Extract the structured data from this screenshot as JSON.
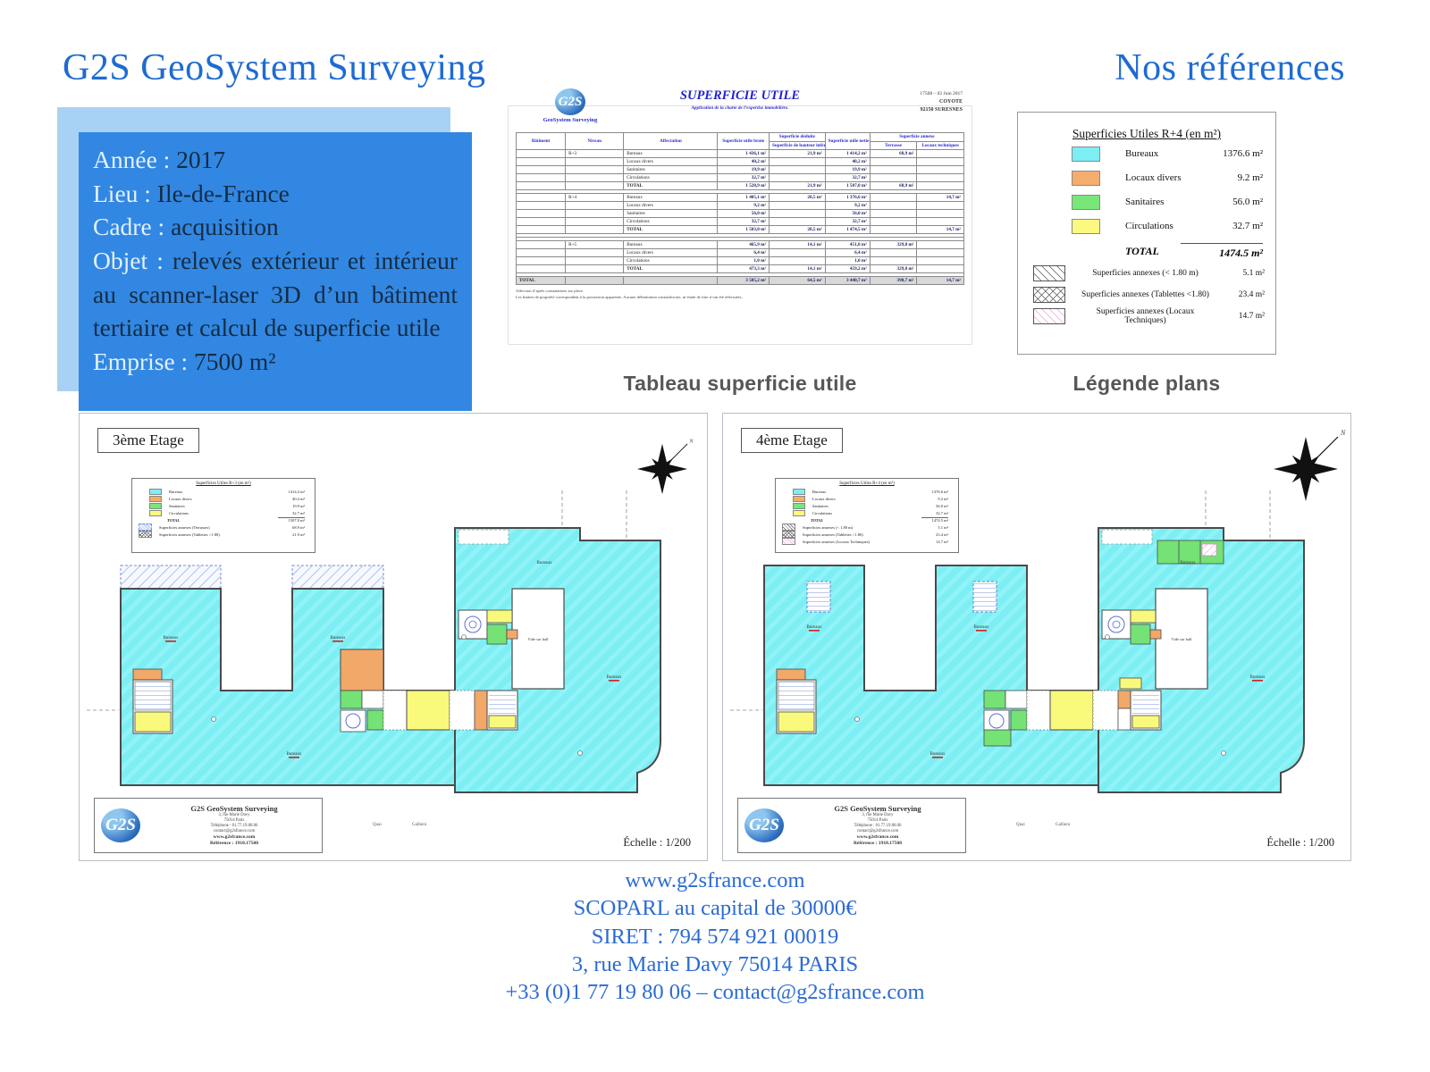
{
  "brand": {
    "logo": "G2S"
  },
  "colors": {
    "accent_blue": "#3287e2",
    "title_blue": "#1d6bd3",
    "footer_blue": "#2b6bd4",
    "bureaux_cyan": "#7deef3",
    "locaux_orange": "#f5ad6e",
    "sanitaires_green": "#79e679",
    "circulations_yellow": "#fbf97f"
  },
  "header": {
    "title_left": "G2S GeoSystem Surveying",
    "title_right": "Nos références"
  },
  "info_box": {
    "lines": [
      {
        "label": "Année :",
        "value": "2017"
      },
      {
        "label": "Lieu :",
        "value": "Ile-de-France"
      },
      {
        "label": "Cadre :",
        "value": "acquisition"
      },
      {
        "label": "Objet :",
        "value": "relevés extérieur et intérieur au scanner-laser 3D d’un bâtiment tertiaire et calcul de superficie utile"
      },
      {
        "label": "Emprise :",
        "value": "7500 m²"
      }
    ]
  },
  "document": {
    "logo": {
      "text": "G2S",
      "sub": "GeoSystem Surveying"
    },
    "header": {
      "ref_date": "17508 – 02 Juin 2017",
      "client": "COYOTE",
      "city": "92150 SURESNES"
    },
    "title": "SUPERFICIE UTILE",
    "subtitle": "Application de la charte de l’expertise immobilière.",
    "table": {
      "col_headers": {
        "batiment": "Bâtiment",
        "niveau": "Niveau",
        "affectation": "Affectation",
        "brute": "Superficie utile brute",
        "deduite_group": "Superficie déduite",
        "deduite": "Superficie de hauteur inférieure à 1,80 m",
        "nette": "Superficie utile nette",
        "annexe_group": "Superficie annexe",
        "terrasse": "Terrasse",
        "locaux": "Locaux techniques"
      },
      "rows": [
        {
          "niveau": "R+3",
          "affectation": "Bureaux",
          "brute": "1 436,1 m²",
          "deduite": "21,9 m²",
          "nette": "1 414,2 m²",
          "terrasse": "68,9 m²"
        },
        {
          "affectation": "Locaux divers",
          "brute": "40,2 m²",
          "nette": "40,2 m²"
        },
        {
          "affectation": "Sanitaires",
          "brute": "19,9 m²",
          "nette": "19,9 m²"
        },
        {
          "affectation": "Circulations",
          "brute": "32,7 m²",
          "nette": "32,7 m²"
        },
        {
          "type": "total",
          "affectation": "TOTAL",
          "brute": "1 528,9 m²",
          "deduite": "21,9 m²",
          "nette": "1 507,0 m²",
          "terrasse": "68,9 m²"
        },
        {
          "type": "spacer"
        },
        {
          "niveau": "R+4",
          "affectation": "Bureaux",
          "brute": "1 405,1 m²",
          "deduite": "28,5 m²",
          "nette": "1 376,6 m²",
          "locaux": "14,7 m²"
        },
        {
          "affectation": "Locaux divers",
          "brute": "9,2 m²",
          "nette": "9,2 m²"
        },
        {
          "affectation": "Sanitaires",
          "brute": "56,0 m²",
          "nette": "56,0 m²"
        },
        {
          "affectation": "Circulations",
          "brute": "32,7 m²",
          "nette": "32,7 m²"
        },
        {
          "type": "total",
          "affectation": "TOTAL",
          "brute": "1 503,0 m²",
          "deduite": "28,5 m²",
          "nette": "1 474,5 m²",
          "locaux": "14,7 m²"
        },
        {
          "type": "spacer"
        },
        {
          "type": "spacer"
        },
        {
          "niveau": "R+5",
          "affectation": "Bureaux",
          "brute": "465,9 m²",
          "deduite": "14,1 m²",
          "nette": "451,8 m²",
          "terrasse": "329,8 m²"
        },
        {
          "affectation": "Locaux divers",
          "brute": "6,4 m²",
          "nette": "6,4 m²"
        },
        {
          "affectation": "Circulations",
          "brute": "1,0 m²",
          "nette": "1,0 m²"
        },
        {
          "type": "total",
          "affectation": "TOTAL",
          "brute": "473,3 m²",
          "deduite": "14,1 m²",
          "nette": "459,2 m²",
          "terrasse": "329,8 m²"
        },
        {
          "type": "spacer"
        },
        {
          "type": "grand",
          "batiment": "TOTAL",
          "brute": "3 505,2 m²",
          "deduite": "64,5 m²",
          "nette": "3 440,7 m²",
          "terrasse": "398,7 m²",
          "locaux": "14,7 m²"
        }
      ]
    },
    "notes": [
      "Affection d’après constatations sur place.",
      "Les limites de propriété correspondent à la possession apparente. Aucune délimitation contradictoire, ni étude de titre n’ont été effectuées."
    ]
  },
  "captions": {
    "table": "Tableau superficie utile",
    "legend": "Légende plans"
  },
  "legend": {
    "title": "Superficies Utiles R+4 (en m²)",
    "rows": [
      {
        "label": "Bureaux",
        "value": "1376.6 m²",
        "swatch": "cyan"
      },
      {
        "label": "Locaux divers",
        "value": "9.2 m²",
        "swatch": "orange"
      },
      {
        "label": "Sanitaires",
        "value": "56.0 m²",
        "swatch": "green"
      },
      {
        "label": "Circulations",
        "value": "32.7 m²",
        "swatch": "yellow"
      }
    ],
    "total": {
      "label": "TOTAL",
      "value": "1474.5 m²"
    },
    "annexes": [
      {
        "label": "Superficies annexes (< 1.80 m)",
        "value": "5.1 m²",
        "swatch": "diag"
      },
      {
        "label": "Superficies annexes (Tablettes <1.80)",
        "value": "23.4 m²",
        "swatch": "diamond"
      },
      {
        "label": "Superficies annexes (Locaux Techniques)",
        "value": "14.7 m²",
        "swatch": "pink"
      }
    ]
  },
  "plan_labels": {
    "bureaux": "Bureaux",
    "vide": "Vide sur hall"
  },
  "plan_info": {
    "name": "G2S GeoSystem Surveying",
    "addr1": "3, rue Marie Davy",
    "addr2": "75014 Paris",
    "phone": "Téléphone : 01.77.19.80.06",
    "email": "contact@g2sfrance.com",
    "web": "www.g2sfrance.com",
    "reference": "Référence : 1918.17508",
    "echelle": "Échelle : 1/200",
    "north": "N",
    "streets": [
      "Quai",
      "Gallieni"
    ]
  },
  "plans": [
    {
      "title": "3ème Etage",
      "variant": "etage3",
      "mini_legend": {
        "title": "Superficies Utiles R+3 (en m²)",
        "rows": [
          {
            "label": "Bureaux",
            "value": "1414.2 m²",
            "swatch": "cyan"
          },
          {
            "label": "Locaux divers",
            "value": "40.2 m²",
            "swatch": "orange"
          },
          {
            "label": "Sanitaires",
            "value": "19.9 m²",
            "swatch": "green"
          },
          {
            "label": "Circulations",
            "value": "32.7 m²",
            "swatch": "yellow"
          }
        ],
        "total": {
          "label": "TOTAL",
          "value": "1507.0 m²"
        },
        "annexes": [
          {
            "label": "Superficies annexes (Terrasses)",
            "value": "68.9 m²",
            "swatch": "terr"
          },
          {
            "label": "Superficies annexes (Tablettes <1.80)",
            "value": "21.9 m²",
            "swatch": "diamond"
          }
        ]
      }
    },
    {
      "title": "4ème Etage",
      "variant": "etage4",
      "mini_legend": {
        "title": "Superficies Utiles R+4 (en m²)",
        "rows": [
          {
            "label": "Bureaux",
            "value": "1376.6 m²",
            "swatch": "cyan"
          },
          {
            "label": "Locaux divers",
            "value": "9.2 m²",
            "swatch": "orange"
          },
          {
            "label": "Sanitaires",
            "value": "56.0 m²",
            "swatch": "green"
          },
          {
            "label": "Circulations",
            "value": "32.7 m²",
            "swatch": "yellow"
          }
        ],
        "total": {
          "label": "TOTAL",
          "value": "1474.5 m²"
        },
        "annexes": [
          {
            "label": "Superficies annexes (< 1.80 m)",
            "value": "5.1 m²",
            "swatch": "diag"
          },
          {
            "label": "Superficies annexes (Tablettes <1.80)",
            "value": "23.4 m²",
            "swatch": "diamond"
          },
          {
            "label": "Superficies annexes (Locaux Techniques)",
            "value": "14.7 m²",
            "swatch": "pink"
          }
        ]
      }
    }
  ],
  "footer": {
    "lines": [
      "www.g2sfrance.com",
      "SCOPARL au capital de 30000€",
      "SIRET : 794 574 921 00019",
      "3, rue Marie Davy 75014 PARIS",
      "+33 (0)1 77 19 80 06 – contact@g2sfrance.com"
    ]
  }
}
